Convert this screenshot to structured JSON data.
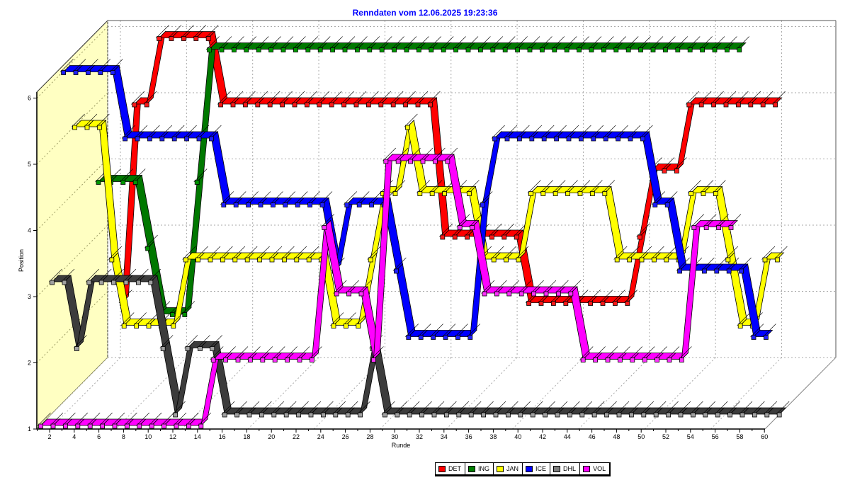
{
  "title": {
    "text": "Renndaten vom 12.06.2025 19:23:36",
    "color": "#0000ff"
  },
  "axes": {
    "x": {
      "label": "Runde",
      "min": 1,
      "max": 60,
      "tick_labels": [
        2,
        4,
        6,
        8,
        10,
        12,
        14,
        16,
        18,
        20,
        22,
        24,
        26,
        28,
        30,
        32,
        34,
        36,
        38,
        40,
        42,
        44,
        46,
        48,
        50,
        52,
        54,
        56,
        58,
        60
      ]
    },
    "y": {
      "label": "Position",
      "min": 1,
      "max": 6,
      "tick_labels": [
        1,
        2,
        3,
        4,
        5,
        6
      ]
    }
  },
  "legend": {
    "items": [
      {
        "label": "DET",
        "color": "#ff0000"
      },
      {
        "label": "ING",
        "color": "#008000"
      },
      {
        "label": "JAN",
        "color": "#ffff00"
      },
      {
        "label": "ICE",
        "color": "#0000ff"
      },
      {
        "label": "DHL",
        "color": "#808080"
      },
      {
        "label": "VOL",
        "color": "#ff00ff"
      }
    ]
  },
  "colors": {
    "wall": "#ffffc2",
    "grid": "#aaaaaa",
    "frame": "#555555",
    "axis": "#000000"
  },
  "chart_data": {
    "type": "line",
    "style": "3d-ribbon",
    "title": "Renndaten vom 12.06.2025 19:23:36",
    "xlabel": "Runde",
    "ylabel": "Position",
    "xlim": [
      1,
      60
    ],
    "ylim": [
      1,
      6
    ],
    "grid": true,
    "legend_position": "bottom",
    "x_unit": "lap",
    "series": [
      {
        "name": "DET",
        "color": "#ff0000",
        "hatch_color": "#a00000",
        "marker_color": "#ff1a1a",
        "legend_color": "#ff0000",
        "laps_completed": 56,
        "final_position": 5,
        "positions": [
          2,
          2,
          2,
          5,
          5,
          6,
          6,
          6,
          6,
          6,
          5,
          5,
          5,
          5,
          5,
          5,
          5,
          5,
          5,
          5,
          5,
          5,
          5,
          5,
          5,
          5,
          5,
          5,
          3,
          3,
          3,
          3,
          3,
          3,
          3,
          2,
          2,
          2,
          2,
          2,
          2,
          2,
          2,
          2,
          3,
          4,
          4,
          4,
          5,
          5,
          5,
          5,
          5,
          5,
          5,
          5
        ]
      },
      {
        "name": "ING",
        "color": "#007800",
        "hatch_color": "#003c00",
        "marker_color": "#009600",
        "legend_color": "#008000",
        "laps_completed": 54,
        "final_position": 6,
        "positions": [
          4,
          4,
          4,
          4,
          4,
          3,
          2,
          2,
          2,
          4,
          6,
          6,
          6,
          6,
          6,
          6,
          6,
          6,
          6,
          6,
          6,
          6,
          6,
          6,
          6,
          6,
          6,
          6,
          6,
          6,
          6,
          6,
          6,
          6,
          6,
          6,
          6,
          6,
          6,
          6,
          6,
          6,
          6,
          6,
          6,
          6,
          6,
          6,
          6,
          6,
          6,
          6,
          6,
          6
        ]
      },
      {
        "name": "JAN",
        "color": "#ffff00",
        "hatch_color": "#8f8f00",
        "marker_color": "#ffff00",
        "legend_color": "#ffff00",
        "laps_completed": 58,
        "final_position": 3,
        "positions": [
          5,
          5,
          5,
          3,
          2,
          2,
          2,
          2,
          2,
          3,
          3,
          3,
          3,
          3,
          3,
          3,
          3,
          3,
          3,
          3,
          3,
          2,
          2,
          2,
          3,
          4,
          4,
          5,
          4,
          4,
          4,
          4,
          4,
          3,
          3,
          3,
          3,
          4,
          4,
          4,
          4,
          4,
          4,
          4,
          3,
          3,
          3,
          3,
          3,
          3,
          4,
          4,
          4,
          3,
          2,
          2,
          3,
          3
        ]
      },
      {
        "name": "ICE",
        "color": "#0000ff",
        "hatch_color": "#000090",
        "marker_color": "#2020ff",
        "legend_color": "#0000ff",
        "laps_completed": 58,
        "final_position": 2,
        "positions": [
          6,
          6,
          6,
          6,
          6,
          5,
          5,
          5,
          5,
          5,
          5,
          5,
          5,
          4,
          4,
          4,
          4,
          4,
          4,
          4,
          4,
          4,
          3,
          4,
          4,
          4,
          4,
          3,
          2,
          2,
          2,
          2,
          2,
          2,
          4,
          5,
          5,
          5,
          5,
          5,
          5,
          5,
          5,
          5,
          5,
          5,
          5,
          5,
          4,
          4,
          3,
          3,
          3,
          3,
          3,
          3,
          2,
          2
        ]
      },
      {
        "name": "DHL",
        "color": "#3c3c3c",
        "hatch_color": "#8c8c8c",
        "marker_color": "#a0a0a0",
        "legend_color": "#808080",
        "laps_completed": 60,
        "final_position": 1,
        "positions": [
          3,
          3,
          2,
          3,
          3,
          3,
          3,
          3,
          3,
          2,
          1,
          2,
          2,
          2,
          1,
          1,
          1,
          1,
          1,
          1,
          1,
          1,
          1,
          1,
          1,
          1,
          2,
          1,
          1,
          1,
          1,
          1,
          1,
          1,
          1,
          1,
          1,
          1,
          1,
          1,
          1,
          1,
          1,
          1,
          1,
          1,
          1,
          1,
          1,
          1,
          1,
          1,
          1,
          1,
          1,
          1,
          1,
          1,
          1,
          1
        ]
      },
      {
        "name": "VOL",
        "color": "#ff00ff",
        "hatch_color": "#a000a0",
        "marker_color": "#ff30ff",
        "legend_color": "#ff00ff",
        "laps_completed": 57,
        "final_position": 4,
        "positions": [
          1,
          1,
          1,
          1,
          1,
          1,
          1,
          1,
          1,
          1,
          1,
          1,
          1,
          1,
          2,
          2,
          2,
          2,
          2,
          2,
          2,
          2,
          2,
          4,
          3,
          3,
          3,
          2,
          5,
          5,
          5,
          5,
          5,
          5,
          4,
          4,
          3,
          3,
          3,
          3,
          3,
          3,
          3,
          3,
          2,
          2,
          2,
          2,
          2,
          2,
          2,
          2,
          2,
          4,
          4,
          4,
          4
        ]
      }
    ]
  }
}
